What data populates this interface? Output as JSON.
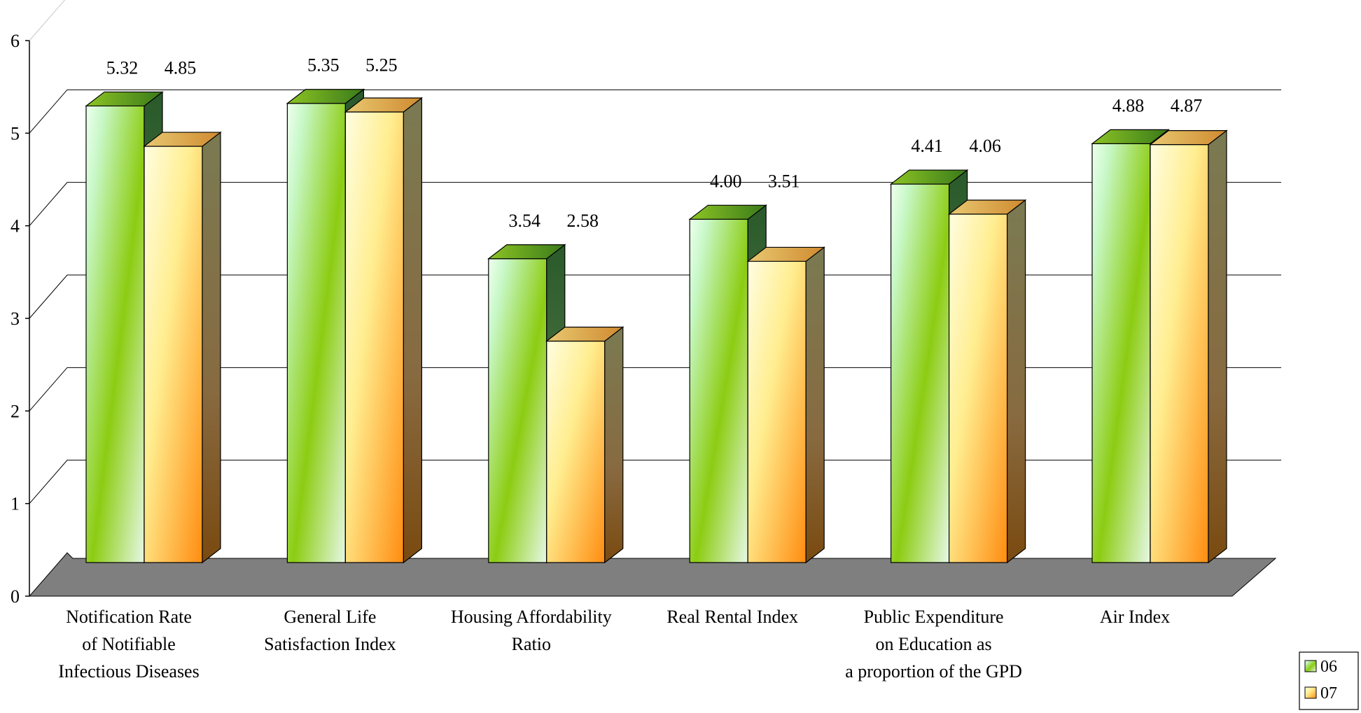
{
  "chart_data": {
    "type": "bar",
    "title": "",
    "xlabel": "",
    "ylabel": "",
    "ylim": [
      0,
      6
    ],
    "yticks": [
      "0",
      "1",
      "2",
      "3",
      "4",
      "5",
      "6"
    ],
    "grid": true,
    "legend_position": "bottom-right",
    "categories": [
      [
        "Notification Rate",
        "of Notifiable",
        "Infectious Diseases"
      ],
      [
        "General Life",
        "Satisfaction Index"
      ],
      [
        "Housing Affordability",
        "Ratio"
      ],
      [
        "Real Rental Index"
      ],
      [
        "Public Expenditure",
        "on Education as",
        "a proportion of the GPD"
      ],
      [
        "Air Index"
      ]
    ],
    "series": [
      {
        "name": "06",
        "values": [
          5.32,
          5.35,
          3.54,
          4.0,
          4.41,
          4.88
        ],
        "labels": [
          "5.32",
          "5.35",
          "3.54",
          "4.00",
          "4.41",
          "4.88"
        ],
        "color": "#8ccc1e"
      },
      {
        "name": "07",
        "values": [
          4.85,
          5.25,
          2.58,
          3.51,
          4.06,
          4.87
        ],
        "labels": [
          "4.85",
          "5.25",
          "2.58",
          "3.51",
          "4.06",
          "4.87"
        ],
        "color": "#ffb23a"
      }
    ]
  }
}
